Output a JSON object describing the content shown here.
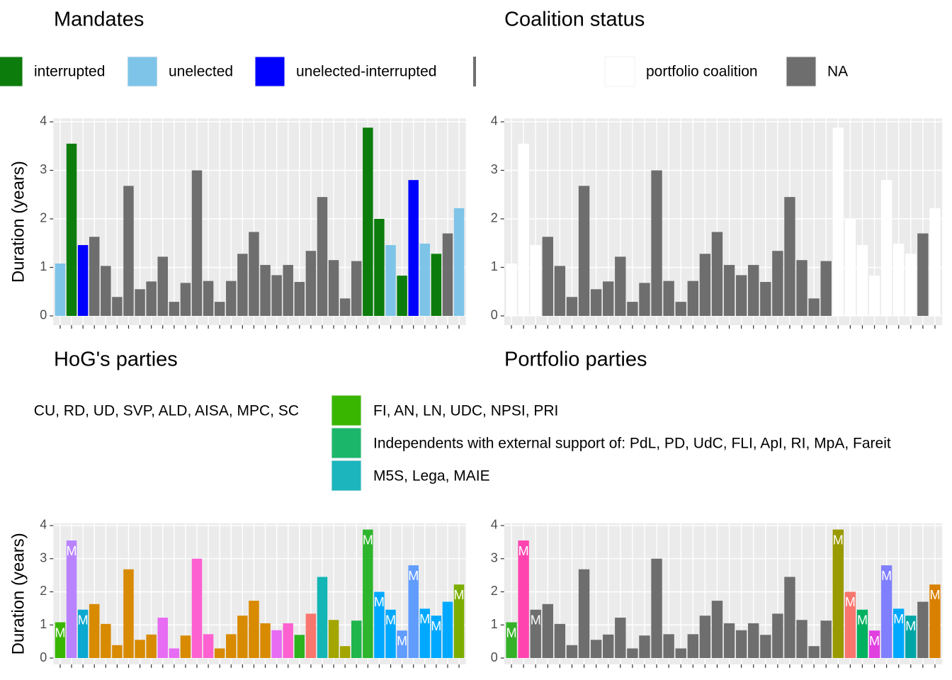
{
  "chart_data": [
    {
      "type": "bar",
      "title": "Mandates",
      "ylabel": "Duration (years)",
      "categories": [
        null,
        null,
        null,
        null,
        null,
        null,
        null,
        null,
        null,
        null,
        null,
        null,
        null,
        null,
        null,
        null,
        null,
        null,
        null,
        null,
        null,
        null,
        null,
        null,
        null,
        null,
        null,
        null,
        null,
        null,
        null,
        null,
        null,
        null,
        null,
        null
      ],
      "values": [
        1.08,
        3.55,
        1.46,
        1.63,
        1.03,
        0.39,
        2.68,
        0.55,
        0.71,
        1.22,
        0.29,
        0.68,
        3.0,
        0.72,
        0.29,
        0.72,
        1.28,
        1.73,
        1.05,
        0.84,
        1.05,
        0.7,
        1.34,
        2.45,
        1.15,
        0.36,
        1.13,
        3.88,
        2.0,
        1.46,
        0.83,
        2.8,
        1.49,
        1.28,
        1.7,
        2.22
      ],
      "colors": [
        "#7ec4e8",
        "#0c7c0c",
        "#0000ff",
        "#6e6e6e",
        "#6e6e6e",
        "#6e6e6e",
        "#6e6e6e",
        "#6e6e6e",
        "#6e6e6e",
        "#6e6e6e",
        "#6e6e6e",
        "#6e6e6e",
        "#6e6e6e",
        "#6e6e6e",
        "#6e6e6e",
        "#6e6e6e",
        "#6e6e6e",
        "#6e6e6e",
        "#6e6e6e",
        "#6e6e6e",
        "#6e6e6e",
        "#6e6e6e",
        "#6e6e6e",
        "#6e6e6e",
        "#6e6e6e",
        "#6e6e6e",
        "#6e6e6e",
        "#0c7c0c",
        "#0c7c0c",
        "#7ec4e8",
        "#0c7c0c",
        "#0000ff",
        "#7ec4e8",
        "#0c7c0c",
        "#6e6e6e",
        "#7ec4e8"
      ],
      "legend": [
        {
          "name": "interrupted",
          "color": "#0c7c0c"
        },
        {
          "name": "unelected",
          "color": "#7ec4e8"
        },
        {
          "name": "unelected-interrupted",
          "color": "#0000ff"
        }
      ],
      "ylim": [
        -0.19,
        4.07
      ],
      "yticks": [
        0,
        1,
        2,
        3,
        4
      ],
      "grid": true
    },
    {
      "type": "bar",
      "title": "Coalition status",
      "categories": [
        null,
        null,
        null,
        null,
        null,
        null,
        null,
        null,
        null,
        null,
        null,
        null,
        null,
        null,
        null,
        null,
        null,
        null,
        null,
        null,
        null,
        null,
        null,
        null,
        null,
        null,
        null,
        null,
        null,
        null,
        null,
        null,
        null,
        null,
        null,
        null
      ],
      "values": [
        1.08,
        3.55,
        1.46,
        1.63,
        1.03,
        0.39,
        2.68,
        0.55,
        0.71,
        1.22,
        0.29,
        0.68,
        3.0,
        0.72,
        0.29,
        0.72,
        1.28,
        1.73,
        1.05,
        0.84,
        1.05,
        0.7,
        1.34,
        2.45,
        1.15,
        0.36,
        1.13,
        3.88,
        2.0,
        1.46,
        0.83,
        2.8,
        1.49,
        1.28,
        1.7,
        2.22
      ],
      "colors": [
        "#ffffff",
        "#ffffff",
        "#ffffff",
        "#6e6e6e",
        "#6e6e6e",
        "#6e6e6e",
        "#6e6e6e",
        "#6e6e6e",
        "#6e6e6e",
        "#6e6e6e",
        "#6e6e6e",
        "#6e6e6e",
        "#6e6e6e",
        "#6e6e6e",
        "#6e6e6e",
        "#6e6e6e",
        "#6e6e6e",
        "#6e6e6e",
        "#6e6e6e",
        "#6e6e6e",
        "#6e6e6e",
        "#6e6e6e",
        "#6e6e6e",
        "#6e6e6e",
        "#6e6e6e",
        "#6e6e6e",
        "#6e6e6e",
        "#ffffff",
        "#ffffff",
        "#ffffff",
        "#ffffff",
        "#ffffff",
        "#ffffff",
        "#ffffff",
        "#6e6e6e",
        "#ffffff"
      ],
      "legend": [
        {
          "name": "portfolio coalition",
          "color": "#ffffff"
        },
        {
          "name": "NA",
          "color": "#6e6e6e"
        }
      ],
      "ylim": [
        -0.19,
        4.07
      ],
      "yticks": [
        0,
        1,
        2,
        3,
        4
      ],
      "grid": true
    },
    {
      "type": "bar",
      "title": "HoG's parties",
      "ylabel": "Duration (years)",
      "categories": [
        null,
        null,
        null,
        null,
        null,
        null,
        null,
        null,
        null,
        null,
        null,
        null,
        null,
        null,
        null,
        null,
        null,
        null,
        null,
        null,
        null,
        null,
        null,
        null,
        null,
        null,
        null,
        null,
        null,
        null,
        null,
        null,
        null,
        null,
        null,
        null
      ],
      "values": [
        1.08,
        3.55,
        1.46,
        1.63,
        1.03,
        0.39,
        2.68,
        0.55,
        0.71,
        1.22,
        0.29,
        0.68,
        3.0,
        0.72,
        0.29,
        0.72,
        1.28,
        1.73,
        1.05,
        0.84,
        1.05,
        0.7,
        1.34,
        2.45,
        1.15,
        0.36,
        1.13,
        3.88,
        2.0,
        1.46,
        0.83,
        2.8,
        1.49,
        1.28,
        1.7,
        2.22
      ],
      "colors": [
        "#39b600",
        "#b983ff",
        "#0ba8d0",
        "#d88a00",
        "#d88a00",
        "#d88a00",
        "#d88a00",
        "#d88a00",
        "#d88a00",
        "#e76bf3",
        "#e76bf3",
        "#d88a00",
        "#fd61d1",
        "#fd61d1",
        "#d88a00",
        "#d88a00",
        "#d88a00",
        "#d88a00",
        "#d88a00",
        "#e76bf3",
        "#fd61d1",
        "#2cb41f",
        "#f8766d",
        "#13b5b5",
        "#a3a500",
        "#a3a500",
        "#1fb64c",
        "#2db52d",
        "#00a9ff",
        "#00a9ff",
        "#619cff",
        "#619cff",
        "#00a9ff",
        "#00a9ff",
        "#00a9ff",
        "#7cae00"
      ],
      "bar_labels": [
        "M",
        "M",
        "M",
        null,
        null,
        null,
        null,
        null,
        null,
        null,
        null,
        null,
        null,
        null,
        null,
        null,
        null,
        null,
        null,
        null,
        null,
        null,
        null,
        null,
        null,
        null,
        null,
        "M",
        "M",
        "M",
        "M",
        "M",
        "M",
        "M",
        null,
        "M"
      ],
      "legend": [
        {
          "name": "CU, RD, UD, SVP, ALD, AISA, MPC, SC"
        },
        {
          "name": "FI, AN, LN, UDC, NPSI, PRI",
          "color": "#39b600"
        },
        {
          "name": "Independents with external support of: PdL, PD, UdC, FLI, ApI, RI, MpA, Fareit",
          "color": "#1cb66b"
        },
        {
          "name": "M5S, Lega, MAIE",
          "color": "#1cb5bd"
        }
      ],
      "ylim": [
        -0.19,
        4.07
      ],
      "yticks": [
        0,
        1,
        2,
        3,
        4
      ],
      "grid": true
    },
    {
      "type": "bar",
      "title": "Portfolio parties",
      "categories": [
        null,
        null,
        null,
        null,
        null,
        null,
        null,
        null,
        null,
        null,
        null,
        null,
        null,
        null,
        null,
        null,
        null,
        null,
        null,
        null,
        null,
        null,
        null,
        null,
        null,
        null,
        null,
        null,
        null,
        null,
        null,
        null,
        null,
        null,
        null,
        null
      ],
      "values": [
        1.08,
        3.55,
        1.46,
        1.63,
        1.03,
        0.39,
        2.68,
        0.55,
        0.71,
        1.22,
        0.29,
        0.68,
        3.0,
        0.72,
        0.29,
        0.72,
        1.28,
        1.73,
        1.05,
        0.84,
        1.05,
        0.7,
        1.34,
        2.45,
        1.15,
        0.36,
        1.13,
        3.88,
        2.0,
        1.46,
        0.83,
        2.8,
        1.49,
        1.28,
        1.7,
        2.22
      ],
      "colors": [
        "#34b128",
        "#ff44b0",
        "#6e6e6e",
        "#6e6e6e",
        "#6e6e6e",
        "#6e6e6e",
        "#6e6e6e",
        "#6e6e6e",
        "#6e6e6e",
        "#6e6e6e",
        "#6e6e6e",
        "#6e6e6e",
        "#6e6e6e",
        "#6e6e6e",
        "#6e6e6e",
        "#6e6e6e",
        "#6e6e6e",
        "#6e6e6e",
        "#6e6e6e",
        "#6e6e6e",
        "#6e6e6e",
        "#6e6e6e",
        "#6e6e6e",
        "#6e6e6e",
        "#6e6e6e",
        "#6e6e6e",
        "#6e6e6e",
        "#999900",
        "#f8766d",
        "#00b160",
        "#e040e0",
        "#8080ff",
        "#00a9ff",
        "#00a6a6",
        "#6e6e6e",
        "#d98000"
      ],
      "bar_labels": [
        "M",
        "M",
        "M",
        null,
        null,
        null,
        null,
        null,
        null,
        null,
        null,
        null,
        null,
        null,
        null,
        null,
        null,
        null,
        null,
        null,
        null,
        null,
        null,
        null,
        null,
        null,
        null,
        "M",
        "M",
        "M",
        "M",
        "M",
        "M",
        "M",
        null,
        "M"
      ],
      "ylim": [
        -0.19,
        4.07
      ],
      "yticks": [
        0,
        1,
        2,
        3,
        4
      ],
      "grid": true
    }
  ]
}
